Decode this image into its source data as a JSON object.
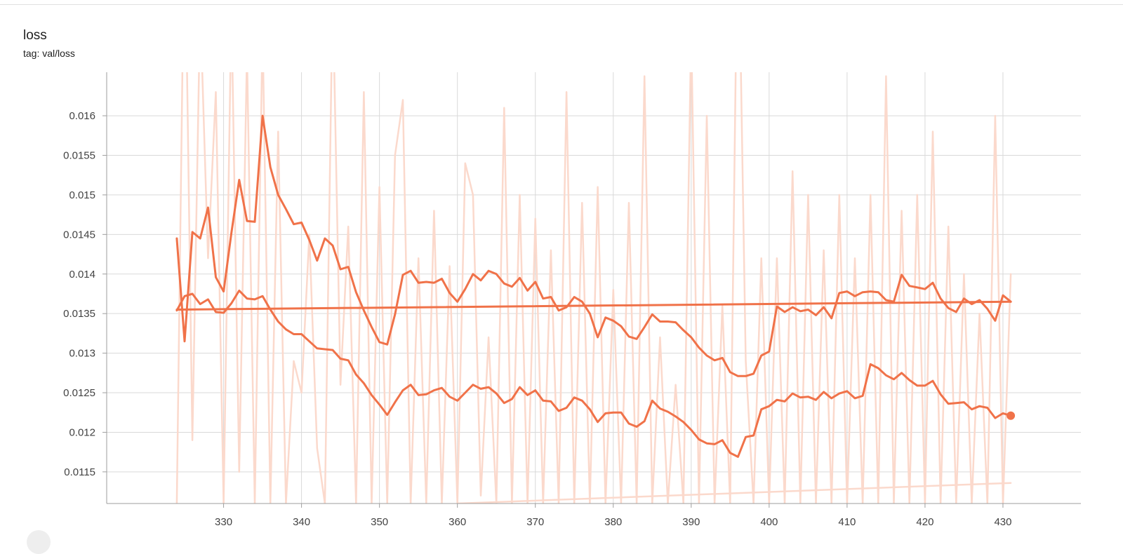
{
  "card": {
    "title": "loss",
    "tag_label": "tag: val/loss"
  },
  "colors": {
    "series_line": "#f07249",
    "raw_line": "#fbd9cc",
    "grid": "#d9d9d9",
    "axis": "#9e9e9e"
  },
  "chart_data": {
    "type": "line",
    "xlim": [
      315,
      440
    ],
    "ylim": [
      0.0111,
      0.01655
    ],
    "xticks": [
      330,
      340,
      350,
      360,
      370,
      380,
      390,
      400,
      410,
      420,
      430
    ],
    "xtick_labels": [
      "330",
      "340",
      "350",
      "360",
      "370",
      "380",
      "390",
      "400",
      "410",
      "420",
      "430"
    ],
    "yticks": [
      0.0115,
      0.012,
      0.0125,
      0.013,
      0.0135,
      0.014,
      0.0145,
      0.015,
      0.0155,
      0.016
    ],
    "ytick_labels": [
      "0.0115",
      "0.012",
      "0.0125",
      "0.013",
      "0.0135",
      "0.014",
      "0.0145",
      "0.015",
      "0.0155",
      "0.016"
    ],
    "grid": true,
    "series": [
      {
        "role": "smoothed",
        "x": [
          324,
          325,
          326,
          327,
          328,
          329,
          330,
          331,
          332,
          333,
          334,
          335,
          336,
          337,
          338,
          339,
          340,
          341,
          342,
          343,
          344,
          345,
          346,
          347,
          348,
          349,
          350,
          351,
          352,
          353,
          354,
          355,
          356,
          357,
          358,
          359,
          360,
          361,
          362,
          363,
          364,
          365,
          366,
          367,
          368,
          369,
          370,
          371,
          372,
          373,
          374,
          375,
          376,
          377,
          378,
          379,
          380,
          381,
          382,
          383,
          384,
          385,
          386,
          387,
          388,
          389,
          390,
          391,
          392,
          393,
          394,
          395,
          396,
          397,
          398,
          399,
          400,
          401,
          402,
          403,
          404,
          405,
          406,
          407,
          408,
          409,
          410,
          411,
          412,
          413,
          414,
          415,
          416,
          417,
          418,
          419,
          420,
          421,
          422,
          423,
          424,
          425,
          426,
          427,
          428,
          429,
          430,
          431
        ],
        "y": [
          0.01445,
          0.01315,
          0.01453,
          0.01445,
          0.01484,
          0.01396,
          0.01378,
          0.01452,
          0.01519,
          0.01467,
          0.01466,
          0.016,
          0.01535,
          0.015,
          0.01482,
          0.01463,
          0.01465,
          0.01443,
          0.01417,
          0.01445,
          0.01436,
          0.01406,
          0.01409,
          0.01377,
          0.01354,
          0.01333,
          0.01314,
          0.01311,
          0.01349,
          0.01399,
          0.01404,
          0.01389,
          0.0139,
          0.01389,
          0.01394,
          0.01376,
          0.01365,
          0.01381,
          0.014,
          0.01392,
          0.01404,
          0.014,
          0.01388,
          0.01384,
          0.01395,
          0.01379,
          0.0139,
          0.01369,
          0.01371,
          0.01354,
          0.01358,
          0.01371,
          0.01365,
          0.0135,
          0.0132,
          0.01345,
          0.01341,
          0.01334,
          0.01321,
          0.01318,
          0.01333,
          0.01349,
          0.0134,
          0.0134,
          0.01339,
          0.01329,
          0.0132,
          0.01307,
          0.01297,
          0.01291,
          0.01294,
          0.01276,
          0.01271,
          0.01271,
          0.01274,
          0.01297,
          0.01302,
          0.01359,
          0.01352,
          0.01358,
          0.01353,
          0.01355,
          0.01348,
          0.01358,
          0.01344,
          0.01376,
          0.01378,
          0.01372,
          0.01377,
          0.01378,
          0.01377,
          0.01367,
          0.01365,
          0.01399,
          0.01385,
          0.01383,
          0.01381,
          0.01389,
          0.01369,
          0.01357,
          0.01352,
          0.01369,
          0.01362,
          0.01367,
          0.01356,
          0.01341,
          0.01373,
          0.01365
        ]
      },
      {
        "role": "smoothed",
        "x": [
          324,
          325,
          326,
          327,
          328,
          329,
          330,
          331,
          332,
          333,
          334,
          335,
          336,
          337,
          338,
          339,
          340,
          341,
          342,
          343,
          344,
          345,
          346,
          347,
          348,
          349,
          350,
          351,
          352,
          353,
          354,
          355,
          356,
          357,
          358,
          359,
          360,
          361,
          362,
          363,
          364,
          365,
          366,
          367,
          368,
          369,
          370,
          371,
          372,
          373,
          374,
          375,
          376,
          377,
          378,
          379,
          380,
          381,
          382,
          383,
          384,
          385,
          386,
          387,
          388,
          389,
          390,
          391,
          392,
          393,
          394,
          395,
          396,
          397,
          398,
          399,
          400,
          401,
          402,
          403,
          404,
          405,
          406,
          407,
          408,
          409,
          410,
          411,
          412,
          413,
          414,
          415,
          416,
          417,
          418,
          419,
          420,
          421,
          422,
          423,
          424,
          425,
          426,
          427,
          428,
          429,
          430,
          431
        ],
        "y": [
          0.01354,
          0.01372,
          0.01375,
          0.01362,
          0.01368,
          0.01352,
          0.01351,
          0.01363,
          0.01379,
          0.01369,
          0.01368,
          0.01372,
          0.01355,
          0.0134,
          0.0133,
          0.01324,
          0.01324,
          0.01315,
          0.01306,
          0.01305,
          0.01304,
          0.01293,
          0.01291,
          0.01273,
          0.01262,
          0.01247,
          0.01235,
          0.01222,
          0.01238,
          0.01253,
          0.0126,
          0.01247,
          0.01248,
          0.01253,
          0.01256,
          0.01245,
          0.0124,
          0.0125,
          0.0126,
          0.01255,
          0.01257,
          0.01249,
          0.01237,
          0.01242,
          0.01257,
          0.01247,
          0.01253,
          0.0124,
          0.01239,
          0.01227,
          0.01231,
          0.01244,
          0.0124,
          0.01229,
          0.01213,
          0.01224,
          0.01225,
          0.01225,
          0.01211,
          0.01207,
          0.01214,
          0.0124,
          0.0123,
          0.01226,
          0.0122,
          0.01213,
          0.01203,
          0.01191,
          0.01186,
          0.01185,
          0.0119,
          0.01174,
          0.01169,
          0.01194,
          0.01196,
          0.01229,
          0.01233,
          0.01241,
          0.01239,
          0.01249,
          0.01244,
          0.01245,
          0.01241,
          0.01251,
          0.01243,
          0.01249,
          0.01252,
          0.01243,
          0.01246,
          0.01286,
          0.01281,
          0.01272,
          0.01267,
          0.01275,
          0.01266,
          0.01259,
          0.01259,
          0.01265,
          0.01248,
          0.01236,
          0.01237,
          0.01238,
          0.01229,
          0.01233,
          0.01231,
          0.01218,
          0.01224,
          0.01221
        ]
      },
      {
        "role": "smoothed",
        "x": [
          324,
          431
        ],
        "y": [
          0.01355,
          0.01365
        ]
      },
      {
        "role": "raw",
        "x": [
          324,
          325,
          326,
          327,
          328,
          329,
          330,
          331,
          332,
          333,
          334,
          335,
          336,
          337,
          338,
          339,
          340,
          341,
          342,
          343,
          344,
          345,
          346,
          347,
          348,
          349,
          350,
          351,
          352,
          353,
          354,
          355,
          356,
          357,
          358,
          359,
          360,
          361,
          362,
          363,
          364,
          365,
          366,
          367,
          368,
          369,
          370,
          371,
          372,
          373,
          374,
          375,
          376,
          377,
          378,
          379,
          380,
          381,
          382,
          383,
          384,
          385,
          386,
          387,
          388,
          389,
          390,
          391,
          392,
          393,
          394,
          395,
          396,
          397,
          398,
          399,
          400,
          401,
          402,
          403,
          404,
          405,
          406,
          407,
          408,
          409,
          410,
          411,
          412,
          413,
          414,
          415,
          416,
          417,
          418,
          419,
          420,
          421,
          422,
          423,
          424,
          425,
          426,
          427,
          428,
          429,
          430,
          431
        ],
        "y": [
          0.0111,
          0.0187,
          0.0119,
          0.0174,
          0.0142,
          0.0163,
          0.0111,
          0.0174,
          0.0115,
          0.0168,
          0.0111,
          0.0171,
          0.0111,
          0.0158,
          0.0111,
          0.0129,
          0.0125,
          0.0145,
          0.0118,
          0.0111,
          0.0176,
          0.0126,
          0.0146,
          0.0111,
          0.0163,
          0.0111,
          0.0151,
          0.0111,
          0.0155,
          0.0162,
          0.0111,
          0.0142,
          0.0111,
          0.0148,
          0.0111,
          0.0141,
          0.0111,
          0.0154,
          0.015,
          0.0112,
          0.0132,
          0.0111,
          0.0161,
          0.0111,
          0.015,
          0.0111,
          0.0147,
          0.0111,
          0.0143,
          0.0111,
          0.0163,
          0.0111,
          0.0149,
          0.0111,
          0.0151,
          0.0111,
          0.0138,
          0.0111,
          0.0149,
          0.0111,
          0.0165,
          0.0111,
          0.0132,
          0.0111,
          0.0126,
          0.0111,
          0.0171,
          0.0111,
          0.016,
          0.0111,
          0.0136,
          0.0111,
          0.0188,
          0.0129,
          0.0111,
          0.0142,
          0.0111,
          0.0142,
          0.0111,
          0.0153,
          0.0111,
          0.015,
          0.0111,
          0.0143,
          0.0111,
          0.015,
          0.0111,
          0.0142,
          0.0111,
          0.015,
          0.0111,
          0.0165,
          0.0111,
          0.0148,
          0.0111,
          0.015,
          0.0111,
          0.0158,
          0.0111,
          0.0146,
          0.0111,
          0.014,
          0.0111,
          0.0135,
          0.0111,
          0.016,
          0.0111,
          0.014
        ]
      },
      {
        "role": "raw",
        "x": [
          360,
          431
        ],
        "y": [
          0.0111,
          0.01136
        ]
      }
    ],
    "last_point": {
      "x": 431,
      "y": 0.01221
    }
  }
}
